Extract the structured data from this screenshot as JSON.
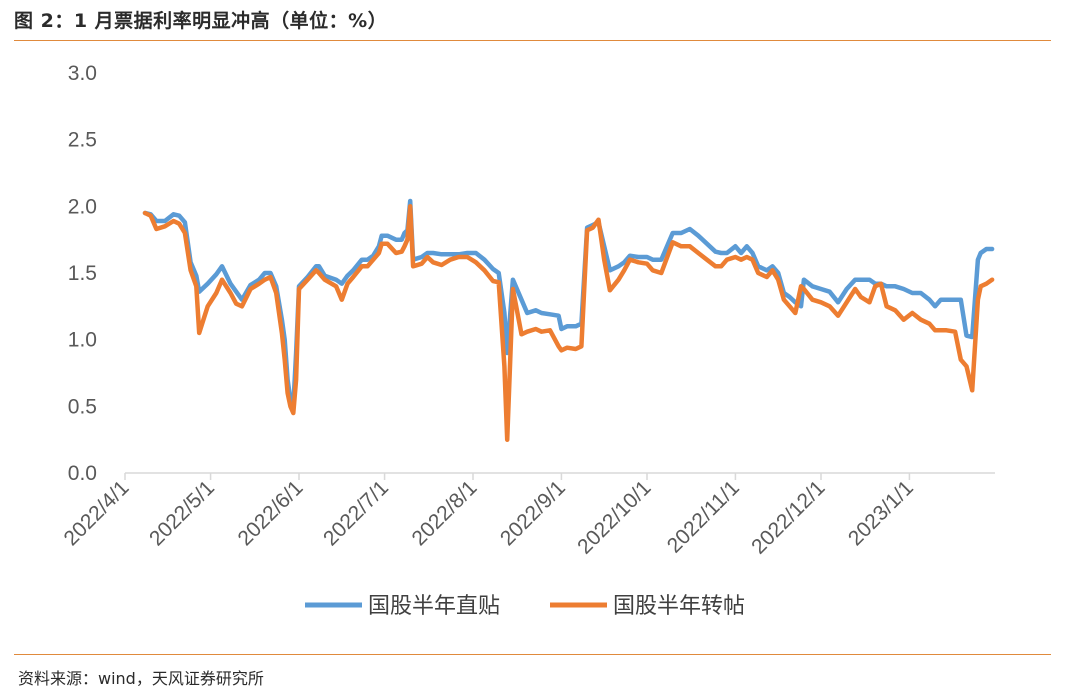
{
  "header": {
    "title": "图 2：1 月票据利率明显冲高（单位：%）"
  },
  "footer": {
    "source": "资料来源：wind，天风证券研究所"
  },
  "chart_data": {
    "type": "line",
    "ylim": [
      0,
      3.0
    ],
    "yticks": [
      "0.0",
      "0.5",
      "1.0",
      "1.5",
      "2.0",
      "2.5",
      "3.0"
    ],
    "xlim": [
      "2022-04-01",
      "2023-01-31"
    ],
    "xticks": [
      "2022/4/1",
      "2022/5/1",
      "2022/6/1",
      "2022/7/1",
      "2022/8/1",
      "2022/9/1",
      "2022/10/1",
      "2022/11/1",
      "2022/12/1",
      "2023/1/1"
    ],
    "xtick_dates": [
      "2022-04-01",
      "2022-05-01",
      "2022-06-01",
      "2022-07-01",
      "2022-08-01",
      "2022-09-01",
      "2022-10-01",
      "2022-11-01",
      "2022-12-01",
      "2023-01-01"
    ],
    "legend_position": "bottom",
    "grid": false,
    "series": [
      {
        "name": "国股半年直贴",
        "color": "#5b9bd5",
        "points": [
          [
            "2022-04-08",
            1.95
          ],
          [
            "2022-04-10",
            1.94
          ],
          [
            "2022-04-12",
            1.89
          ],
          [
            "2022-04-15",
            1.89
          ],
          [
            "2022-04-18",
            1.94
          ],
          [
            "2022-04-20",
            1.93
          ],
          [
            "2022-04-22",
            1.88
          ],
          [
            "2022-04-24",
            1.58
          ],
          [
            "2022-04-26",
            1.48
          ],
          [
            "2022-04-27",
            1.36
          ],
          [
            "2022-04-30",
            1.42
          ],
          [
            "2022-05-03",
            1.49
          ],
          [
            "2022-05-05",
            1.55
          ],
          [
            "2022-05-08",
            1.42
          ],
          [
            "2022-05-10",
            1.36
          ],
          [
            "2022-05-12",
            1.3
          ],
          [
            "2022-05-15",
            1.41
          ],
          [
            "2022-05-18",
            1.45
          ],
          [
            "2022-05-20",
            1.5
          ],
          [
            "2022-05-22",
            1.5
          ],
          [
            "2022-05-24",
            1.4
          ],
          [
            "2022-05-26",
            1.15
          ],
          [
            "2022-05-27",
            1.0
          ],
          [
            "2022-05-28",
            0.7
          ],
          [
            "2022-05-29",
            0.55
          ],
          [
            "2022-05-30",
            0.5
          ],
          [
            "2022-05-31",
            0.9
          ],
          [
            "2022-06-01",
            1.4
          ],
          [
            "2022-06-04",
            1.47
          ],
          [
            "2022-06-07",
            1.55
          ],
          [
            "2022-06-08",
            1.55
          ],
          [
            "2022-06-10",
            1.48
          ],
          [
            "2022-06-14",
            1.45
          ],
          [
            "2022-06-16",
            1.42
          ],
          [
            "2022-06-18",
            1.48
          ],
          [
            "2022-06-20",
            1.52
          ],
          [
            "2022-06-23",
            1.6
          ],
          [
            "2022-06-25",
            1.6
          ],
          [
            "2022-06-27",
            1.63
          ],
          [
            "2022-06-29",
            1.7
          ],
          [
            "2022-06-30",
            1.78
          ],
          [
            "2022-07-02",
            1.78
          ],
          [
            "2022-07-05",
            1.75
          ],
          [
            "2022-07-07",
            1.75
          ],
          [
            "2022-07-08",
            1.8
          ],
          [
            "2022-07-09",
            1.82
          ],
          [
            "2022-07-10",
            2.04
          ],
          [
            "2022-07-11",
            1.6
          ],
          [
            "2022-07-14",
            1.62
          ],
          [
            "2022-07-16",
            1.65
          ],
          [
            "2022-07-18",
            1.65
          ],
          [
            "2022-07-21",
            1.64
          ],
          [
            "2022-07-24",
            1.64
          ],
          [
            "2022-07-27",
            1.64
          ],
          [
            "2022-07-30",
            1.65
          ],
          [
            "2022-08-02",
            1.65
          ],
          [
            "2022-08-05",
            1.6
          ],
          [
            "2022-08-08",
            1.53
          ],
          [
            "2022-08-10",
            1.5
          ],
          [
            "2022-08-12",
            1.2
          ],
          [
            "2022-08-13",
            0.9
          ],
          [
            "2022-08-15",
            1.45
          ],
          [
            "2022-08-18",
            1.3
          ],
          [
            "2022-08-20",
            1.2
          ],
          [
            "2022-08-23",
            1.22
          ],
          [
            "2022-08-25",
            1.2
          ],
          [
            "2022-08-28",
            1.19
          ],
          [
            "2022-08-31",
            1.18
          ],
          [
            "2022-09-01",
            1.08
          ],
          [
            "2022-09-03",
            1.1
          ],
          [
            "2022-09-06",
            1.1
          ],
          [
            "2022-09-08",
            1.12
          ],
          [
            "2022-09-10",
            1.84
          ],
          [
            "2022-09-12",
            1.86
          ],
          [
            "2022-09-14",
            1.88
          ],
          [
            "2022-09-16",
            1.7
          ],
          [
            "2022-09-18",
            1.52
          ],
          [
            "2022-09-21",
            1.55
          ],
          [
            "2022-09-23",
            1.58
          ],
          [
            "2022-09-25",
            1.63
          ],
          [
            "2022-09-28",
            1.62
          ],
          [
            "2022-10-01",
            1.62
          ],
          [
            "2022-10-03",
            1.6
          ],
          [
            "2022-10-06",
            1.6
          ],
          [
            "2022-10-10",
            1.8
          ],
          [
            "2022-10-13",
            1.8
          ],
          [
            "2022-10-16",
            1.83
          ],
          [
            "2022-10-19",
            1.78
          ],
          [
            "2022-10-22",
            1.72
          ],
          [
            "2022-10-25",
            1.66
          ],
          [
            "2022-10-27",
            1.65
          ],
          [
            "2022-10-29",
            1.65
          ],
          [
            "2022-11-01",
            1.7
          ],
          [
            "2022-11-03",
            1.65
          ],
          [
            "2022-11-05",
            1.7
          ],
          [
            "2022-11-07",
            1.65
          ],
          [
            "2022-11-09",
            1.55
          ],
          [
            "2022-11-12",
            1.52
          ],
          [
            "2022-11-14",
            1.55
          ],
          [
            "2022-11-16",
            1.5
          ],
          [
            "2022-11-18",
            1.35
          ],
          [
            "2022-11-20",
            1.32
          ],
          [
            "2022-11-22",
            1.28
          ],
          [
            "2022-11-24",
            1.25
          ],
          [
            "2022-11-25",
            1.45
          ],
          [
            "2022-11-28",
            1.4
          ],
          [
            "2022-12-01",
            1.38
          ],
          [
            "2022-12-04",
            1.36
          ],
          [
            "2022-12-07",
            1.28
          ],
          [
            "2022-12-10",
            1.38
          ],
          [
            "2022-12-13",
            1.45
          ],
          [
            "2022-12-15",
            1.45
          ],
          [
            "2022-12-18",
            1.45
          ],
          [
            "2022-12-20",
            1.42
          ],
          [
            "2022-12-22",
            1.42
          ],
          [
            "2022-12-24",
            1.4
          ],
          [
            "2022-12-27",
            1.4
          ],
          [
            "2022-12-30",
            1.38
          ],
          [
            "2023-01-02",
            1.35
          ],
          [
            "2023-01-05",
            1.35
          ],
          [
            "2023-01-08",
            1.3
          ],
          [
            "2023-01-10",
            1.25
          ],
          [
            "2023-01-12",
            1.3
          ],
          [
            "2023-01-14",
            1.3
          ],
          [
            "2023-01-17",
            1.3
          ],
          [
            "2023-01-19",
            1.3
          ],
          [
            "2023-01-21",
            1.03
          ],
          [
            "2023-01-23",
            1.02
          ],
          [
            "2023-01-25",
            1.6
          ],
          [
            "2023-01-26",
            1.65
          ],
          [
            "2023-01-28",
            1.68
          ],
          [
            "2023-01-30",
            1.68
          ]
        ]
      },
      {
        "name": "国股半年转帖",
        "color": "#ed7d31",
        "points": [
          [
            "2022-04-08",
            1.95
          ],
          [
            "2022-04-10",
            1.93
          ],
          [
            "2022-04-12",
            1.83
          ],
          [
            "2022-04-15",
            1.85
          ],
          [
            "2022-04-18",
            1.89
          ],
          [
            "2022-04-20",
            1.87
          ],
          [
            "2022-04-22",
            1.8
          ],
          [
            "2022-04-24",
            1.52
          ],
          [
            "2022-04-26",
            1.4
          ],
          [
            "2022-04-27",
            1.05
          ],
          [
            "2022-04-30",
            1.25
          ],
          [
            "2022-05-03",
            1.35
          ],
          [
            "2022-05-05",
            1.45
          ],
          [
            "2022-05-08",
            1.35
          ],
          [
            "2022-05-10",
            1.27
          ],
          [
            "2022-05-12",
            1.25
          ],
          [
            "2022-05-15",
            1.38
          ],
          [
            "2022-05-18",
            1.42
          ],
          [
            "2022-05-20",
            1.45
          ],
          [
            "2022-05-22",
            1.47
          ],
          [
            "2022-05-24",
            1.35
          ],
          [
            "2022-05-26",
            1.05
          ],
          [
            "2022-05-27",
            0.85
          ],
          [
            "2022-05-28",
            0.6
          ],
          [
            "2022-05-29",
            0.5
          ],
          [
            "2022-05-30",
            0.45
          ],
          [
            "2022-05-31",
            0.7
          ],
          [
            "2022-06-01",
            1.38
          ],
          [
            "2022-06-04",
            1.45
          ],
          [
            "2022-06-07",
            1.52
          ],
          [
            "2022-06-08",
            1.5
          ],
          [
            "2022-06-10",
            1.45
          ],
          [
            "2022-06-14",
            1.4
          ],
          [
            "2022-06-16",
            1.3
          ],
          [
            "2022-06-18",
            1.42
          ],
          [
            "2022-06-20",
            1.47
          ],
          [
            "2022-06-23",
            1.55
          ],
          [
            "2022-06-25",
            1.55
          ],
          [
            "2022-06-27",
            1.6
          ],
          [
            "2022-06-29",
            1.65
          ],
          [
            "2022-06-30",
            1.72
          ],
          [
            "2022-07-02",
            1.72
          ],
          [
            "2022-07-05",
            1.65
          ],
          [
            "2022-07-07",
            1.66
          ],
          [
            "2022-07-08",
            1.7
          ],
          [
            "2022-07-09",
            1.75
          ],
          [
            "2022-07-10",
            2.0
          ],
          [
            "2022-07-11",
            1.55
          ],
          [
            "2022-07-14",
            1.57
          ],
          [
            "2022-07-16",
            1.62
          ],
          [
            "2022-07-18",
            1.58
          ],
          [
            "2022-07-21",
            1.56
          ],
          [
            "2022-07-24",
            1.6
          ],
          [
            "2022-07-27",
            1.62
          ],
          [
            "2022-07-30",
            1.62
          ],
          [
            "2022-08-02",
            1.58
          ],
          [
            "2022-08-05",
            1.52
          ],
          [
            "2022-08-08",
            1.44
          ],
          [
            "2022-08-10",
            1.43
          ],
          [
            "2022-08-12",
            0.8
          ],
          [
            "2022-08-13",
            0.25
          ],
          [
            "2022-08-15",
            1.38
          ],
          [
            "2022-08-18",
            1.04
          ],
          [
            "2022-08-20",
            1.06
          ],
          [
            "2022-08-23",
            1.08
          ],
          [
            "2022-08-25",
            1.06
          ],
          [
            "2022-08-28",
            1.07
          ],
          [
            "2022-08-31",
            0.95
          ],
          [
            "2022-09-01",
            0.92
          ],
          [
            "2022-09-03",
            0.94
          ],
          [
            "2022-09-06",
            0.93
          ],
          [
            "2022-09-08",
            0.95
          ],
          [
            "2022-09-10",
            1.82
          ],
          [
            "2022-09-12",
            1.84
          ],
          [
            "2022-09-14",
            1.9
          ],
          [
            "2022-09-16",
            1.6
          ],
          [
            "2022-09-18",
            1.37
          ],
          [
            "2022-09-21",
            1.45
          ],
          [
            "2022-09-23",
            1.52
          ],
          [
            "2022-09-25",
            1.6
          ],
          [
            "2022-09-28",
            1.58
          ],
          [
            "2022-10-01",
            1.57
          ],
          [
            "2022-10-03",
            1.52
          ],
          [
            "2022-10-06",
            1.5
          ],
          [
            "2022-10-10",
            1.73
          ],
          [
            "2022-10-13",
            1.7
          ],
          [
            "2022-10-16",
            1.7
          ],
          [
            "2022-10-19",
            1.65
          ],
          [
            "2022-10-22",
            1.6
          ],
          [
            "2022-10-25",
            1.55
          ],
          [
            "2022-10-27",
            1.55
          ],
          [
            "2022-10-29",
            1.6
          ],
          [
            "2022-11-01",
            1.62
          ],
          [
            "2022-11-03",
            1.6
          ],
          [
            "2022-11-05",
            1.62
          ],
          [
            "2022-11-07",
            1.6
          ],
          [
            "2022-11-09",
            1.5
          ],
          [
            "2022-11-12",
            1.47
          ],
          [
            "2022-11-14",
            1.52
          ],
          [
            "2022-11-16",
            1.45
          ],
          [
            "2022-11-18",
            1.3
          ],
          [
            "2022-11-20",
            1.25
          ],
          [
            "2022-11-22",
            1.2
          ],
          [
            "2022-11-24",
            1.4
          ],
          [
            "2022-11-25",
            1.38
          ],
          [
            "2022-11-28",
            1.3
          ],
          [
            "2022-12-01",
            1.28
          ],
          [
            "2022-12-04",
            1.25
          ],
          [
            "2022-12-07",
            1.18
          ],
          [
            "2022-12-10",
            1.28
          ],
          [
            "2022-12-13",
            1.38
          ],
          [
            "2022-12-15",
            1.32
          ],
          [
            "2022-12-18",
            1.28
          ],
          [
            "2022-12-20",
            1.4
          ],
          [
            "2022-12-22",
            1.42
          ],
          [
            "2022-12-24",
            1.25
          ],
          [
            "2022-12-27",
            1.22
          ],
          [
            "2022-12-30",
            1.15
          ],
          [
            "2023-01-02",
            1.2
          ],
          [
            "2023-01-05",
            1.15
          ],
          [
            "2023-01-08",
            1.12
          ],
          [
            "2023-01-10",
            1.07
          ],
          [
            "2023-01-12",
            1.07
          ],
          [
            "2023-01-14",
            1.07
          ],
          [
            "2023-01-17",
            1.06
          ],
          [
            "2023-01-19",
            0.85
          ],
          [
            "2023-01-21",
            0.8
          ],
          [
            "2023-01-23",
            0.62
          ],
          [
            "2023-01-25",
            1.3
          ],
          [
            "2023-01-26",
            1.4
          ],
          [
            "2023-01-28",
            1.42
          ],
          [
            "2023-01-30",
            1.45
          ]
        ]
      }
    ]
  }
}
